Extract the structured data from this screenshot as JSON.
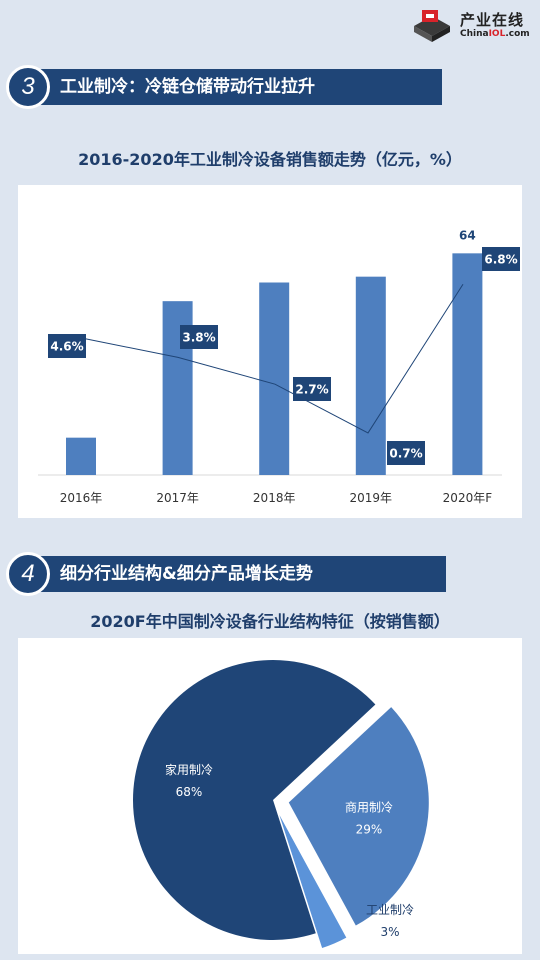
{
  "logo": {
    "name_cn": "产业在线",
    "name_en_1": "China",
    "name_en_2": "IOL",
    "name_en_3": ".com"
  },
  "section3": {
    "number": "3",
    "title": "工业制冷：冷链仓储带动行业拉升"
  },
  "section4": {
    "number": "4",
    "title": "细分行业结构&细分产品增长走势"
  },
  "colors": {
    "bar": "#4e7fbf",
    "dark_navy": "#1f4577",
    "label_box": "#1f4577",
    "pie_home": "#1f4577",
    "pie_commercial": "#4e7fbf",
    "pie_industrial": "#5b93d9"
  },
  "chart_data": [
    {
      "type": "bar",
      "title": "2016-2020年工业制冷设备销售额走势（亿元，%）",
      "categories": [
        "2016年",
        "2017年",
        "2018年",
        "2019年",
        "2020年F"
      ],
      "series": [
        {
          "values": [
            48.2,
            59.9,
            61.5,
            62.0,
            64
          ]
        },
        {
          "values": [
            4.6,
            3.8,
            2.7,
            0.7,
            6.8
          ]
        }
      ],
      "labels_pct": [
        "4.6%",
        "3.8%",
        "2.7%",
        "0.7%",
        "6.8%"
      ],
      "value_label": "64",
      "ylim": [
        45,
        66
      ],
      "growth_ylim": [
        0,
        8
      ]
    },
    {
      "type": "pie",
      "title": "2020F年中国制冷设备行业结构特征（按销售额）",
      "slices": [
        {
          "label": "家用制冷",
          "value": 68,
          "display": "68%"
        },
        {
          "label": "商用制冷",
          "value": 29,
          "display": "29%"
        },
        {
          "label": "工业制冷",
          "value": 3,
          "display": "3%"
        }
      ]
    }
  ]
}
